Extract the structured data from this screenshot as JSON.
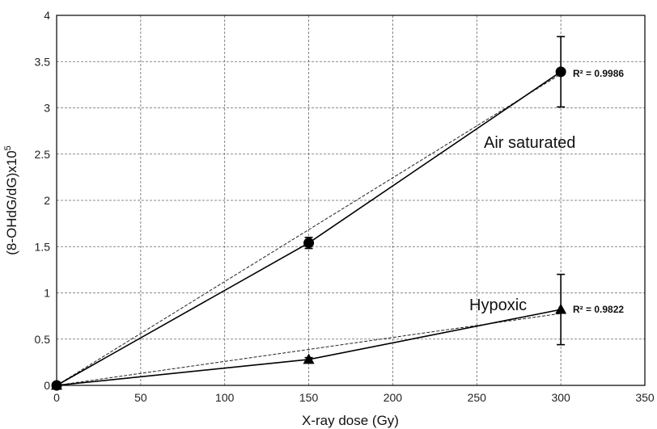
{
  "chart_data": {
    "type": "scatter",
    "xlabel": "X-ray dose (Gy)",
    "ylabel_main": "(8-OHdG/dG)x10",
    "ylabel_sup": "5",
    "xlim": [
      0,
      350
    ],
    "ylim": [
      0,
      4
    ],
    "x_ticks": [
      0,
      50,
      100,
      150,
      200,
      250,
      300,
      350
    ],
    "x_tick_labels": [
      "0",
      "50",
      "100",
      "150",
      "200",
      "250",
      "300",
      "350"
    ],
    "y_ticks": [
      0,
      0.5,
      1,
      1.5,
      2,
      2.5,
      3,
      3.5,
      4
    ],
    "y_tick_labels": [
      "0",
      "0.5",
      "1",
      "1.5",
      "2",
      "2.5",
      "3",
      "3.5",
      "4"
    ],
    "grid": true,
    "series": [
      {
        "label": "Air saturated",
        "marker": "circle",
        "x": [
          0,
          150,
          300
        ],
        "y": [
          0,
          1.54,
          3.39
        ],
        "err": [
          0,
          0.06,
          0.38
        ],
        "trendline": {
          "intercept": 0,
          "slope": 0.01122,
          "r2_label": "R² = 0.9986"
        }
      },
      {
        "label": "Hypoxic",
        "marker": "triangle",
        "x": [
          0,
          150,
          300
        ],
        "y": [
          0,
          0.28,
          0.82
        ],
        "err": [
          0,
          0.02,
          0.38
        ],
        "trendline": {
          "intercept": 0,
          "slope": 0.00259,
          "r2_label": "R² = 0.9822"
        }
      }
    ]
  }
}
